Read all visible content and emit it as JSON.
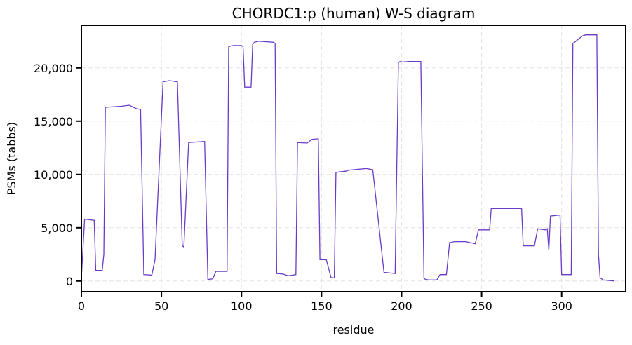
{
  "chart_data": {
    "type": "line",
    "title": "CHORDC1:p (human) W-S diagram",
    "xlabel": "residue",
    "ylabel": "PSMs (tabbs)",
    "xlim": [
      0,
      340
    ],
    "ylim": [
      -1000,
      24000
    ],
    "xticks": [
      0,
      50,
      100,
      150,
      200,
      250,
      300
    ],
    "xtick_labels": [
      "0",
      "50",
      "100",
      "150",
      "200",
      "250",
      "300"
    ],
    "yticks": [
      0,
      5000,
      10000,
      15000,
      20000
    ],
    "ytick_labels": [
      "0",
      "5,000",
      "10,000",
      "15,000",
      "20,000"
    ],
    "grid": true,
    "line_color": "#6a3bc7",
    "series": [
      {
        "x": [
          0,
          2,
          8,
          9,
          13,
          14,
          15,
          25,
          30,
          34,
          37,
          39,
          44,
          46,
          51,
          55,
          60,
          63,
          64,
          67,
          77,
          79,
          82,
          84,
          91,
          92,
          95,
          100,
          101,
          102,
          106,
          107,
          108,
          111,
          120,
          121,
          122,
          126,
          129,
          130,
          134,
          135,
          141,
          144,
          148,
          149,
          153,
          156,
          158,
          159,
          165,
          167,
          178,
          180,
          182,
          189,
          190,
          196,
          198,
          199,
          200,
          205,
          212,
          214,
          215,
          217,
          222,
          224,
          228,
          230,
          233,
          240,
          246,
          248,
          255,
          256,
          260,
          275,
          276,
          277,
          282,
          283,
          285,
          290,
          291,
          292,
          293,
          299,
          300,
          301,
          306,
          307,
          308,
          313,
          315,
          322,
          323,
          324,
          326,
          333
        ],
        "y": [
          300,
          5800,
          5700,
          1000,
          1000,
          2500,
          16300,
          16400,
          16500,
          16200,
          16100,
          600,
          550,
          2000,
          18700,
          18800,
          18700,
          3300,
          3200,
          13000,
          13100,
          150,
          200,
          900,
          900,
          22000,
          22100,
          22100,
          22000,
          18200,
          18200,
          22200,
          22400,
          22500,
          22400,
          22300,
          700,
          650,
          500,
          500,
          600,
          13000,
          12950,
          13300,
          13350,
          2000,
          2000,
          300,
          300,
          10200,
          10300,
          10400,
          10550,
          10500,
          10450,
          800,
          800,
          700,
          20500,
          20600,
          20550,
          20600,
          20600,
          250,
          150,
          100,
          100,
          600,
          600,
          3600,
          3700,
          3700,
          3500,
          4800,
          4800,
          6800,
          6800,
          6800,
          3300,
          3300,
          3300,
          3300,
          4900,
          4800,
          4900,
          2900,
          6100,
          6200,
          600,
          600,
          600,
          22300,
          22400,
          23000,
          23100,
          23100,
          2500,
          300,
          100,
          0
        ]
      }
    ]
  }
}
